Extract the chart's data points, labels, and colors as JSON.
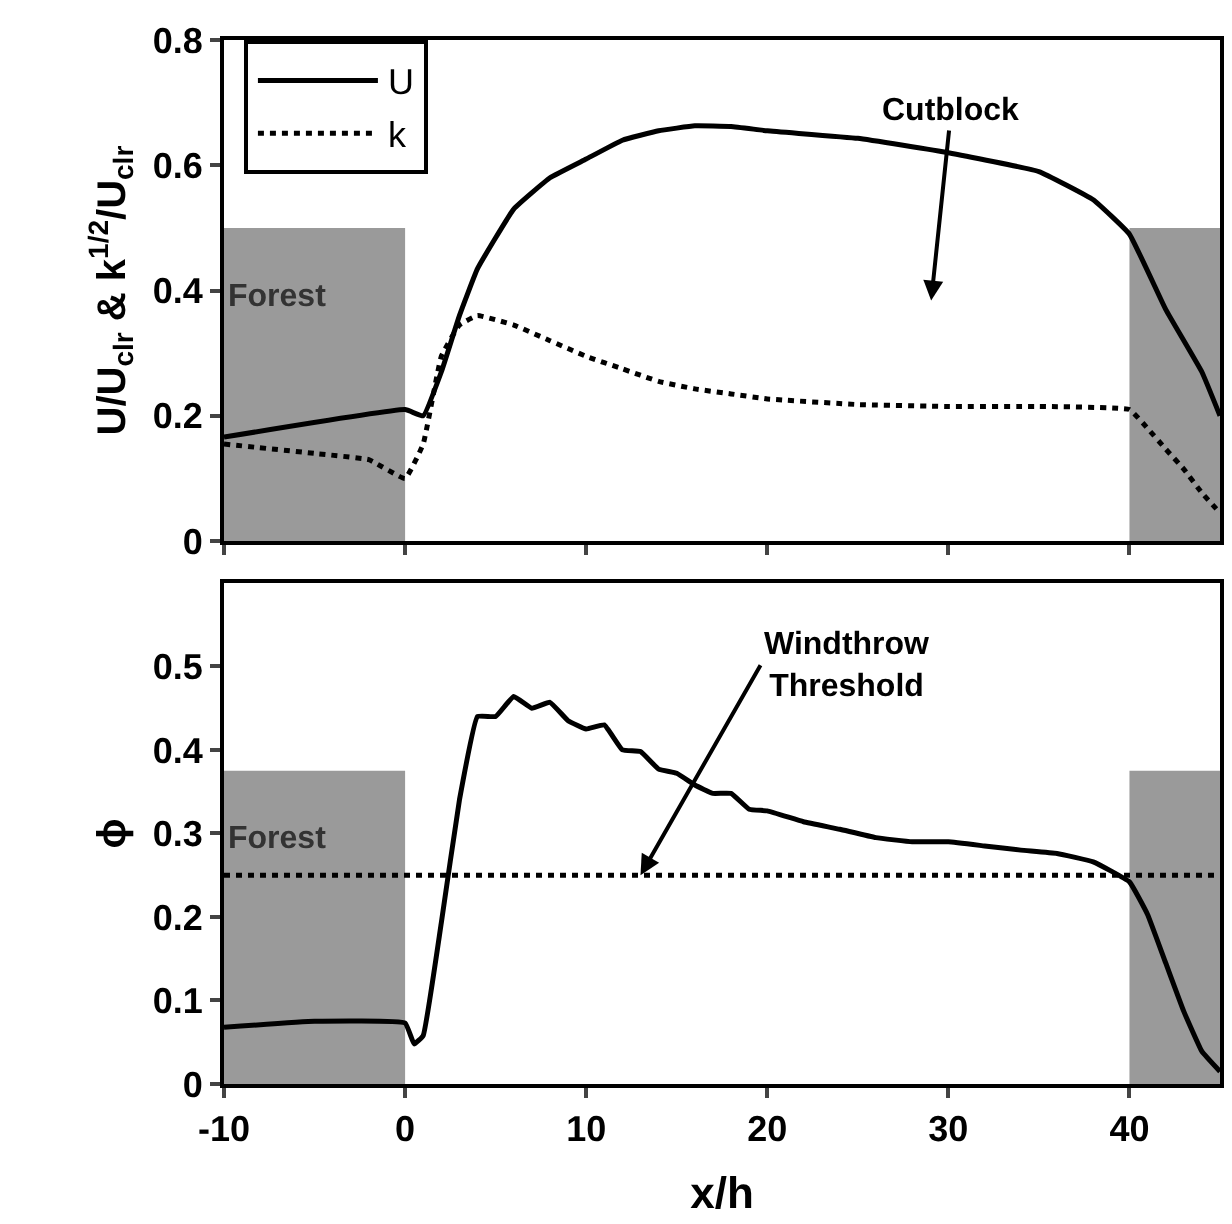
{
  "chart_data": [
    {
      "type": "line",
      "ylabel": "U/U$_{clr}$ & k$^{1/2}$/U$_{clr}$",
      "xlim": [
        -10,
        45
      ],
      "xticks": [
        -10,
        0,
        10,
        20,
        30,
        40
      ],
      "ylim": [
        0,
        0.8
      ],
      "yticks": [
        0,
        0.2,
        0.4,
        0.6,
        0.8
      ],
      "tick_labels": "y",
      "legend": "top left",
      "series": [
        {
          "name": "U",
          "color": "#000000",
          "line_style": "solid",
          "x": [
            -10,
            0,
            1,
            2,
            3,
            4,
            6,
            8,
            10,
            12,
            14,
            16,
            18,
            20,
            25,
            30,
            35,
            38,
            40,
            42,
            44,
            45
          ],
          "values": [
            0.166,
            0.21,
            0.2,
            0.27,
            0.36,
            0.435,
            0.53,
            0.58,
            0.61,
            0.64,
            0.655,
            0.663,
            0.662,
            0.655,
            0.643,
            0.62,
            0.59,
            0.545,
            0.49,
            0.37,
            0.27,
            0.2
          ]
        },
        {
          "name": "k",
          "color": "#000000",
          "line_style": "dotted",
          "x": [
            -10,
            -5,
            -2,
            0,
            1,
            2,
            3,
            4,
            6,
            8,
            10,
            12,
            14,
            16,
            18,
            20,
            25,
            30,
            35,
            40,
            41,
            42,
            43,
            44,
            45
          ],
          "values": [
            0.155,
            0.14,
            0.13,
            0.1,
            0.155,
            0.295,
            0.345,
            0.36,
            0.345,
            0.32,
            0.295,
            0.275,
            0.255,
            0.243,
            0.235,
            0.227,
            0.218,
            0.215,
            0.215,
            0.21,
            0.18,
            0.147,
            0.115,
            0.077,
            0.045
          ]
        }
      ],
      "bands": [
        {
          "axis": "x",
          "from": -10,
          "to": 0,
          "label": "Forest",
          "color": "#9a9a9a"
        },
        {
          "axis": "x",
          "from": 40,
          "to": 45,
          "color": "#9a9a9a"
        }
      ],
      "annotations": [
        "Cutblock"
      ]
    },
    {
      "type": "line",
      "xlabel": "x/h",
      "ylabel": "ϕ",
      "xlim": [
        -10,
        45
      ],
      "xticks": [
        -10,
        0,
        10,
        20,
        30,
        40
      ],
      "ylim": [
        0,
        0.6
      ],
      "yticks": [
        0,
        0.1,
        0.2,
        0.3,
        0.4,
        0.5
      ],
      "series": [
        {
          "color": "#000000",
          "line_style": "solid",
          "x": [
            -10,
            -5,
            0,
            0.5,
            1,
            2,
            3,
            4,
            5,
            6,
            7,
            8,
            9,
            10,
            11,
            12,
            13,
            14,
            15,
            16,
            17,
            18,
            19,
            20,
            22,
            24,
            26,
            28,
            30,
            32,
            34,
            36,
            38,
            40,
            41,
            42,
            43,
            44,
            45
          ],
          "values": [
            0.068,
            0.075,
            0.073,
            0.048,
            0.058,
            0.193,
            0.34,
            0.44,
            0.44,
            0.464,
            0.45,
            0.457,
            0.435,
            0.425,
            0.43,
            0.4,
            0.398,
            0.377,
            0.372,
            0.358,
            0.348,
            0.348,
            0.329,
            0.327,
            0.314,
            0.305,
            0.295,
            0.29,
            0.29,
            0.285,
            0.28,
            0.276,
            0.266,
            0.242,
            0.203,
            0.145,
            0.087,
            0.039,
            0.015
          ]
        }
      ],
      "ref_lines": [
        {
          "axis": "y",
          "value": 0.25,
          "label": "Windthrow\nThreshold",
          "color": "#000000",
          "line_style": "dotted"
        }
      ],
      "bands": [
        {
          "axis": "x",
          "from": -10,
          "to": 0,
          "label": "Forest",
          "color": "#9a9a9a"
        },
        {
          "axis": "x",
          "from": 40,
          "to": 45,
          "color": "#9a9a9a"
        }
      ]
    }
  ]
}
